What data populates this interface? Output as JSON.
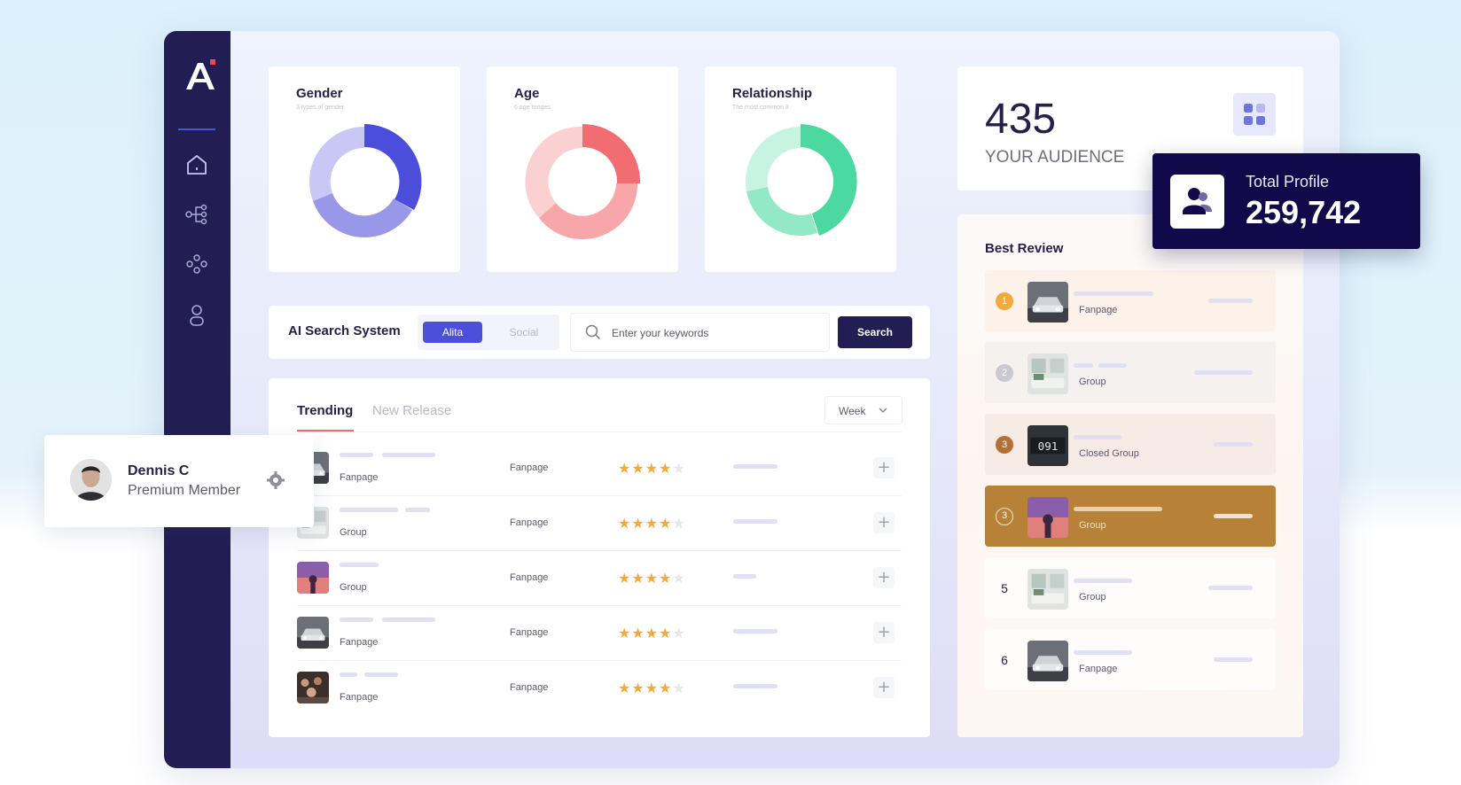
{
  "user": {
    "name": "Dennis C",
    "role": "Premium Member"
  },
  "sidebar": {
    "icons": [
      "logo-icon",
      "home-icon",
      "hierarchy-icon",
      "community-icon",
      "user-icon"
    ]
  },
  "charts": {
    "gender": {
      "title": "Gender",
      "subtitle": "3 types of gender"
    },
    "age": {
      "title": "Age",
      "subtitle": "6 age ranges"
    },
    "relationship": {
      "title": "Relationship",
      "subtitle": "The most common 8"
    }
  },
  "search": {
    "label": "AI Search System",
    "toggle_active": "Alita",
    "toggle_inactive": "Social",
    "placeholder": "Enter your keywords",
    "button": "Search"
  },
  "trending": {
    "tabs": [
      "Trending",
      "New Release"
    ],
    "period": "Week",
    "rows": [
      {
        "type": "Fanpage",
        "category": "Fanpage",
        "stars": 4,
        "thumb": "car"
      },
      {
        "type": "Group",
        "category": "Fanpage",
        "stars": 4,
        "thumb": "room"
      },
      {
        "type": "Group",
        "category": "Fanpage",
        "stars": 4,
        "thumb": "sunset"
      },
      {
        "type": "Fanpage",
        "category": "Fanpage",
        "stars": 4,
        "thumb": "car"
      },
      {
        "type": "Fanpage",
        "category": "Fanpage",
        "stars": 4,
        "thumb": "crowd"
      }
    ]
  },
  "audience": {
    "value": "435",
    "label": "YOUR AUDIENCE"
  },
  "total_profile": {
    "label": "Total Profile",
    "value": "259,742"
  },
  "best_review": {
    "title": "Best Review",
    "items": [
      {
        "rank": "1",
        "type": "Fanpage",
        "thumb": "car",
        "rank_color": "#f6a93b"
      },
      {
        "rank": "2",
        "type": "Group",
        "thumb": "room",
        "rank_color": "#c9c9cf"
      },
      {
        "rank": "3",
        "type": "Closed Group",
        "thumb": "odometer",
        "rank_color": "#b5703a"
      },
      {
        "rank": "3",
        "type": "Group",
        "thumb": "sunset",
        "rank_color": "#b78237",
        "highlighted": true
      },
      {
        "rank": "5",
        "type": "Group",
        "thumb": "room"
      },
      {
        "rank": "6",
        "type": "Fanpage",
        "thumb": "car"
      }
    ]
  },
  "colors": {
    "sidebar": "#221d52",
    "accent": "#4c4fd9",
    "highlight": "#b78237",
    "star": "#f6a93b"
  }
}
